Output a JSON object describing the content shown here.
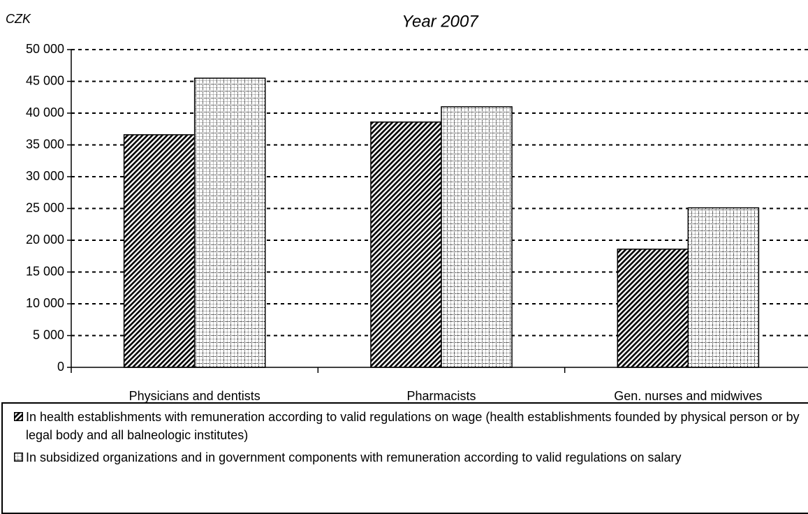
{
  "chart_data": {
    "type": "bar",
    "title": "Year 2007",
    "y_label": "CZK",
    "categories": [
      "Physicians and dentists",
      "Pharmacists",
      "Gen. nurses and midwives"
    ],
    "series": [
      {
        "name": "In health establishments with remuneration according to valid regulations on wage (health establishments founded by physical person or by legal body and all balneologic institutes)",
        "color": "#000000",
        "pattern": "hatch",
        "values": [
          36600,
          38600,
          18600
        ]
      },
      {
        "name": "In subsidized organizations and in government components with remuneration according to valid regulations on salary",
        "color": "#000000",
        "pattern": "grid",
        "values": [
          45500,
          41000,
          25100
        ]
      }
    ],
    "ylim": [
      0,
      50000
    ],
    "yticks": [
      0,
      {
        "value": 5000,
        "label": "5 000"
      },
      {
        "value": 10000,
        "label": "10 000"
      },
      {
        "value": 15000,
        "label": "15 000"
      },
      {
        "value": 20000,
        "label": "20 000"
      },
      {
        "value": 25000,
        "label": "25 000"
      },
      {
        "value": 30000,
        "label": "30 000"
      },
      {
        "value": 35000,
        "label": "35 000"
      },
      {
        "value": 40000,
        "label": "40 000"
      },
      {
        "value": 45000,
        "label": "45 000"
      },
      {
        "value": 50000,
        "label": "50 000"
      }
    ],
    "grid": true
  }
}
